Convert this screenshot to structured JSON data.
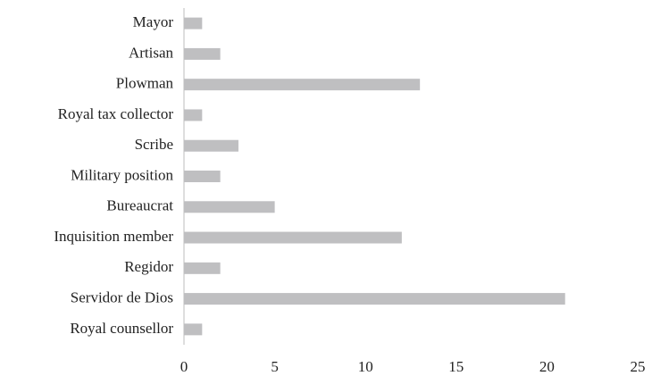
{
  "chart_data": {
    "type": "barh",
    "categories": [
      "Mayor",
      "Artisan",
      "Plowman",
      "Royal tax collector",
      "Scribe",
      "Military position",
      "Bureaucrat",
      "Inquisition member",
      "Regidor",
      "Servidor de Dios",
      "Royal counsellor"
    ],
    "values": [
      1,
      2,
      13,
      1,
      3,
      2,
      5,
      12,
      2,
      21,
      1
    ],
    "color": "#bfbfc1",
    "xlim": [
      0,
      25
    ],
    "xticks": [
      0,
      5,
      10,
      15,
      20,
      25
    ],
    "grid": false
  }
}
